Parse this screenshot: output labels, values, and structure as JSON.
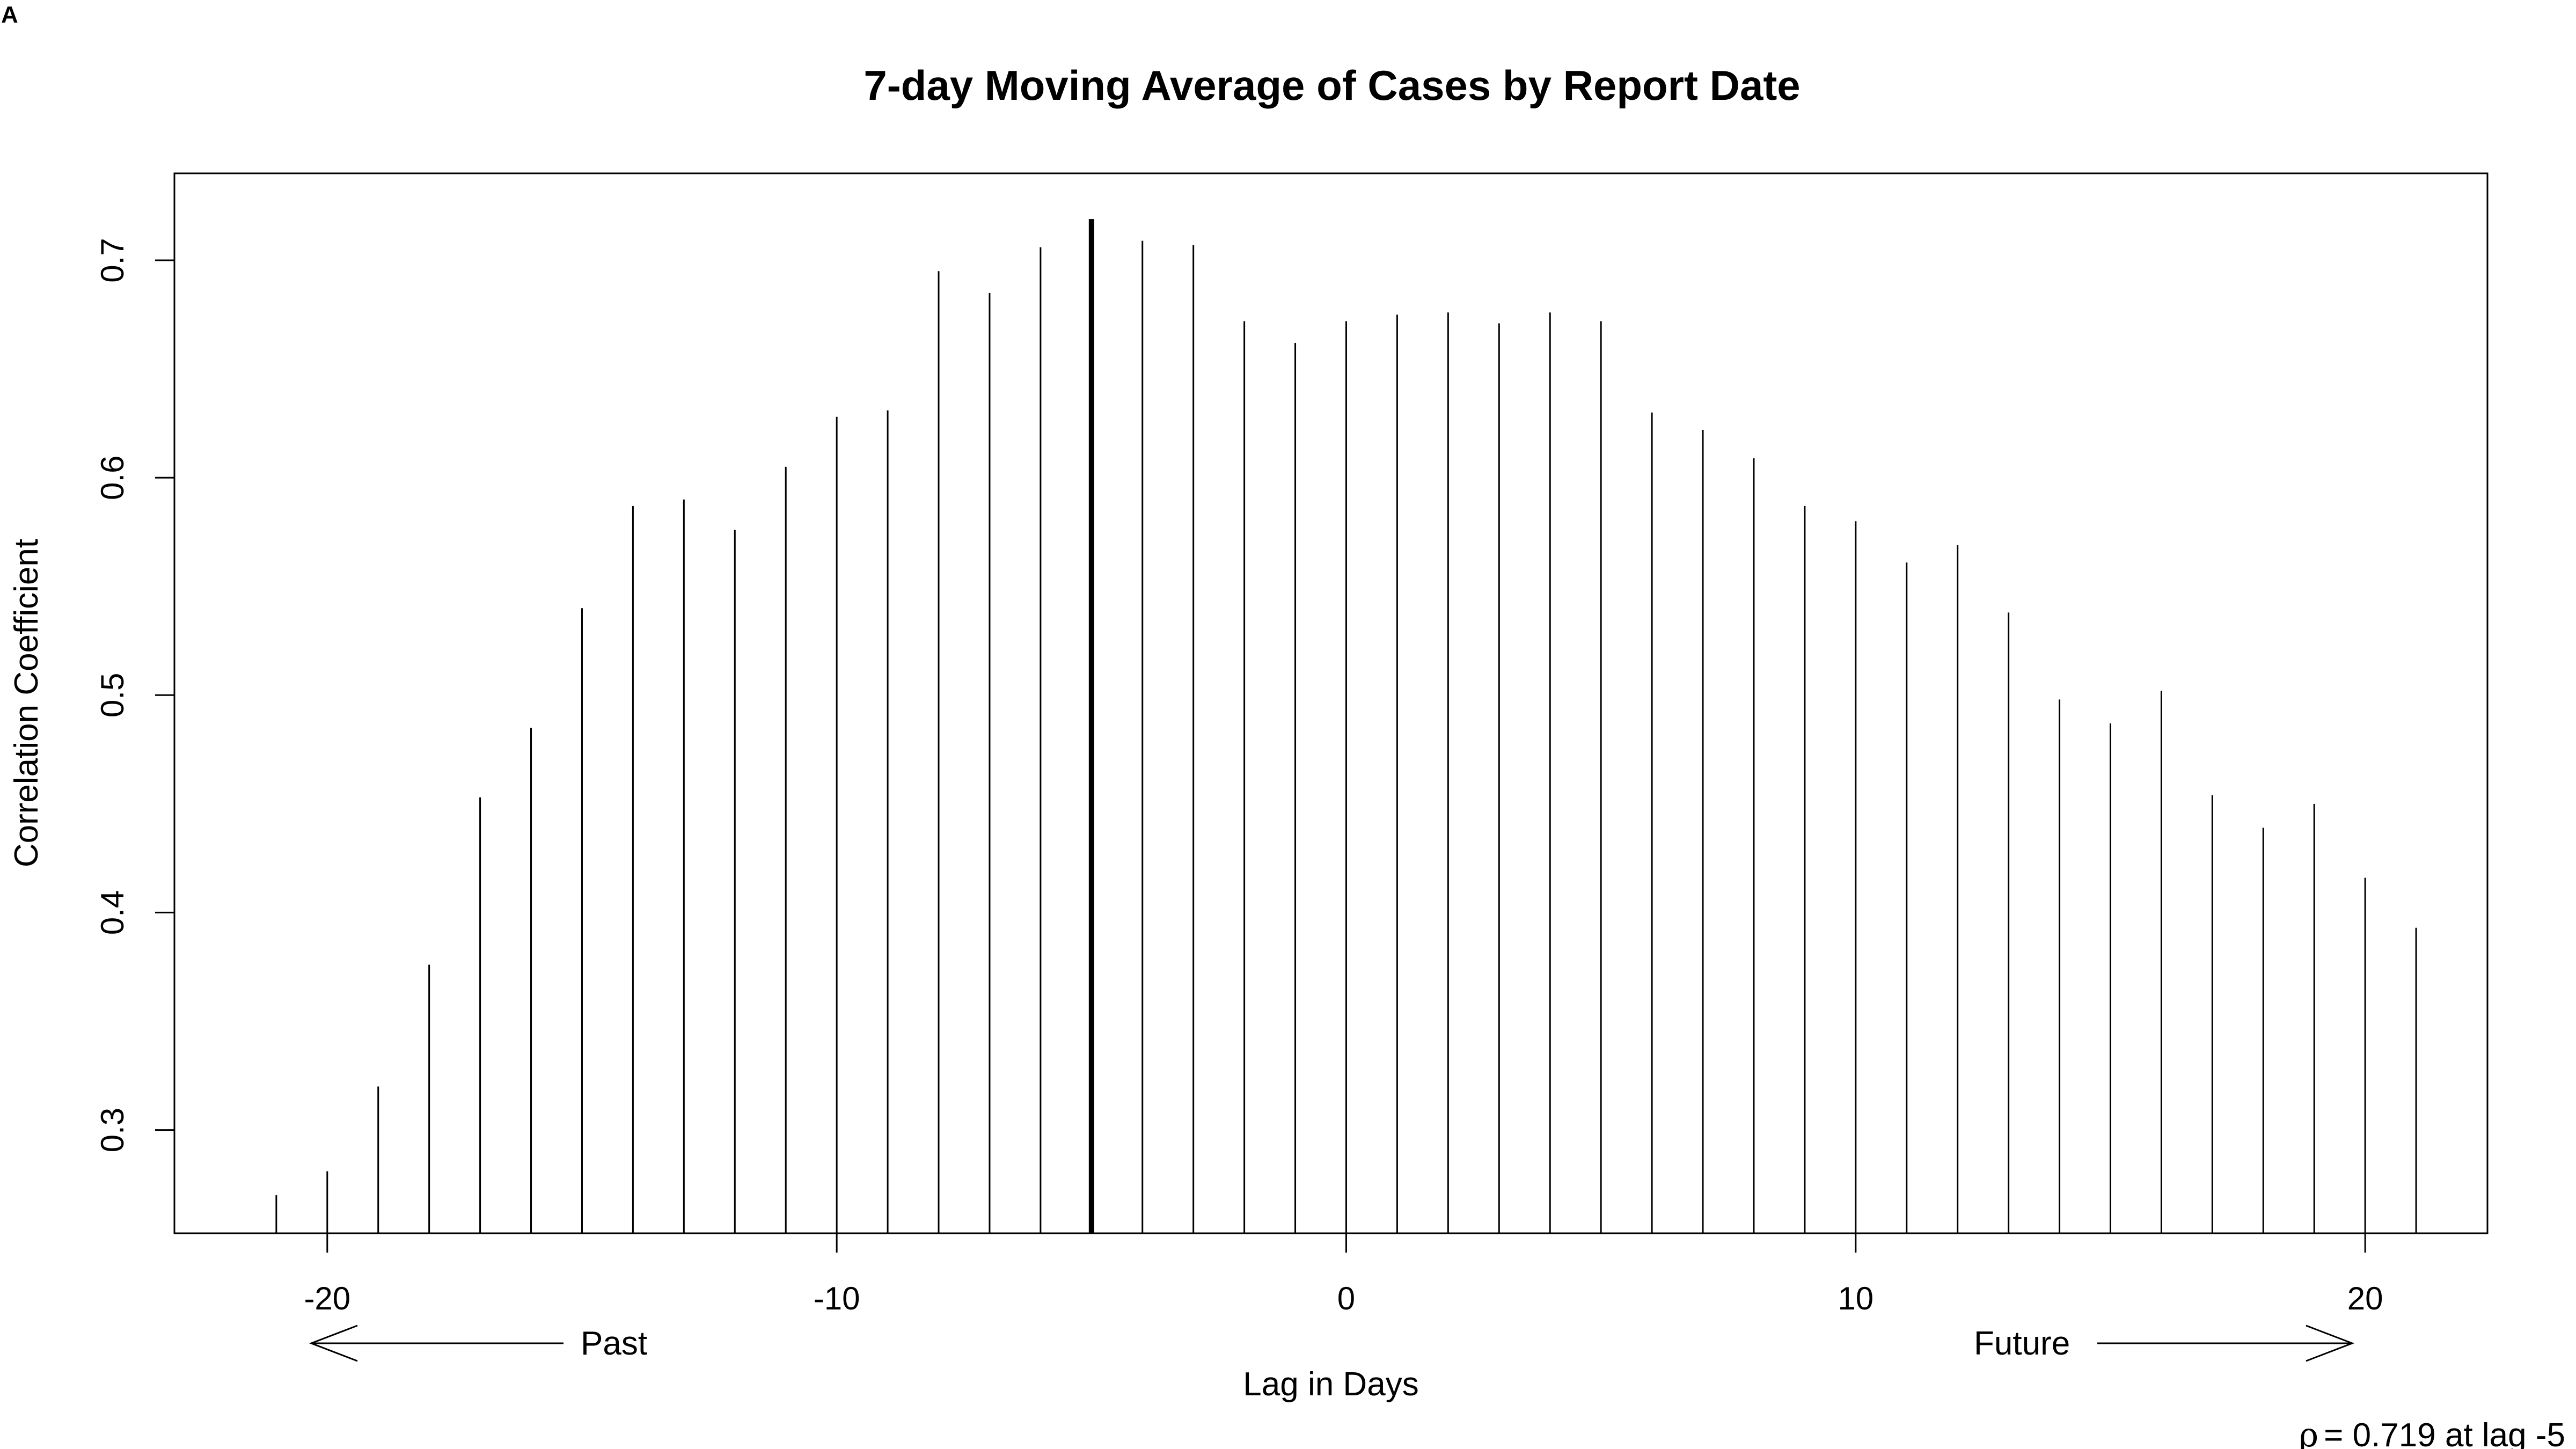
{
  "panel_label": "A",
  "chart_data": {
    "type": "bar",
    "title": "7-day Moving Average of Cases by Report Date",
    "xlabel": "Lag in Days",
    "ylabel": "Correlation Coefficient",
    "xlim": [
      -23.0,
      22.4
    ],
    "ylim": [
      0.2525,
      0.74
    ],
    "x_ticks": [
      -20,
      -10,
      0,
      10,
      20
    ],
    "x_tick_labels": [
      "-20",
      "-10",
      "0",
      "10",
      "20"
    ],
    "y_ticks": [
      0.3,
      0.4,
      0.5,
      0.6,
      0.7
    ],
    "y_tick_labels": [
      "0.3",
      "0.4",
      "0.5",
      "0.6",
      "0.7"
    ],
    "grid": false,
    "x": [
      -21,
      -20,
      -19,
      -18,
      -17,
      -16,
      -15,
      -14,
      -13,
      -12,
      -11,
      -10,
      -9,
      -8,
      -7,
      -6,
      -5,
      -4,
      -3,
      -2,
      -1,
      0,
      1,
      2,
      3,
      4,
      5,
      6,
      7,
      8,
      9,
      10,
      11,
      12,
      13,
      14,
      15,
      16,
      17,
      18,
      19,
      20,
      21
    ],
    "values": [
      0.27,
      0.281,
      0.32,
      0.376,
      0.453,
      0.485,
      0.54,
      0.587,
      0.59,
      0.576,
      0.605,
      0.628,
      0.631,
      0.695,
      0.685,
      0.706,
      0.719,
      0.709,
      0.707,
      0.672,
      0.662,
      0.672,
      0.675,
      0.676,
      0.671,
      0.676,
      0.672,
      0.63,
      0.622,
      0.609,
      0.587,
      0.58,
      0.561,
      0.569,
      0.538,
      0.498,
      0.487,
      0.502,
      0.454,
      0.439,
      0.45,
      0.416,
      0.393
    ],
    "highlight_x": -5,
    "annotations": {
      "past": "Past",
      "future": "Future",
      "rho_symbol": "ρ",
      "rho_text": "= 0.719 at lag -5"
    }
  }
}
